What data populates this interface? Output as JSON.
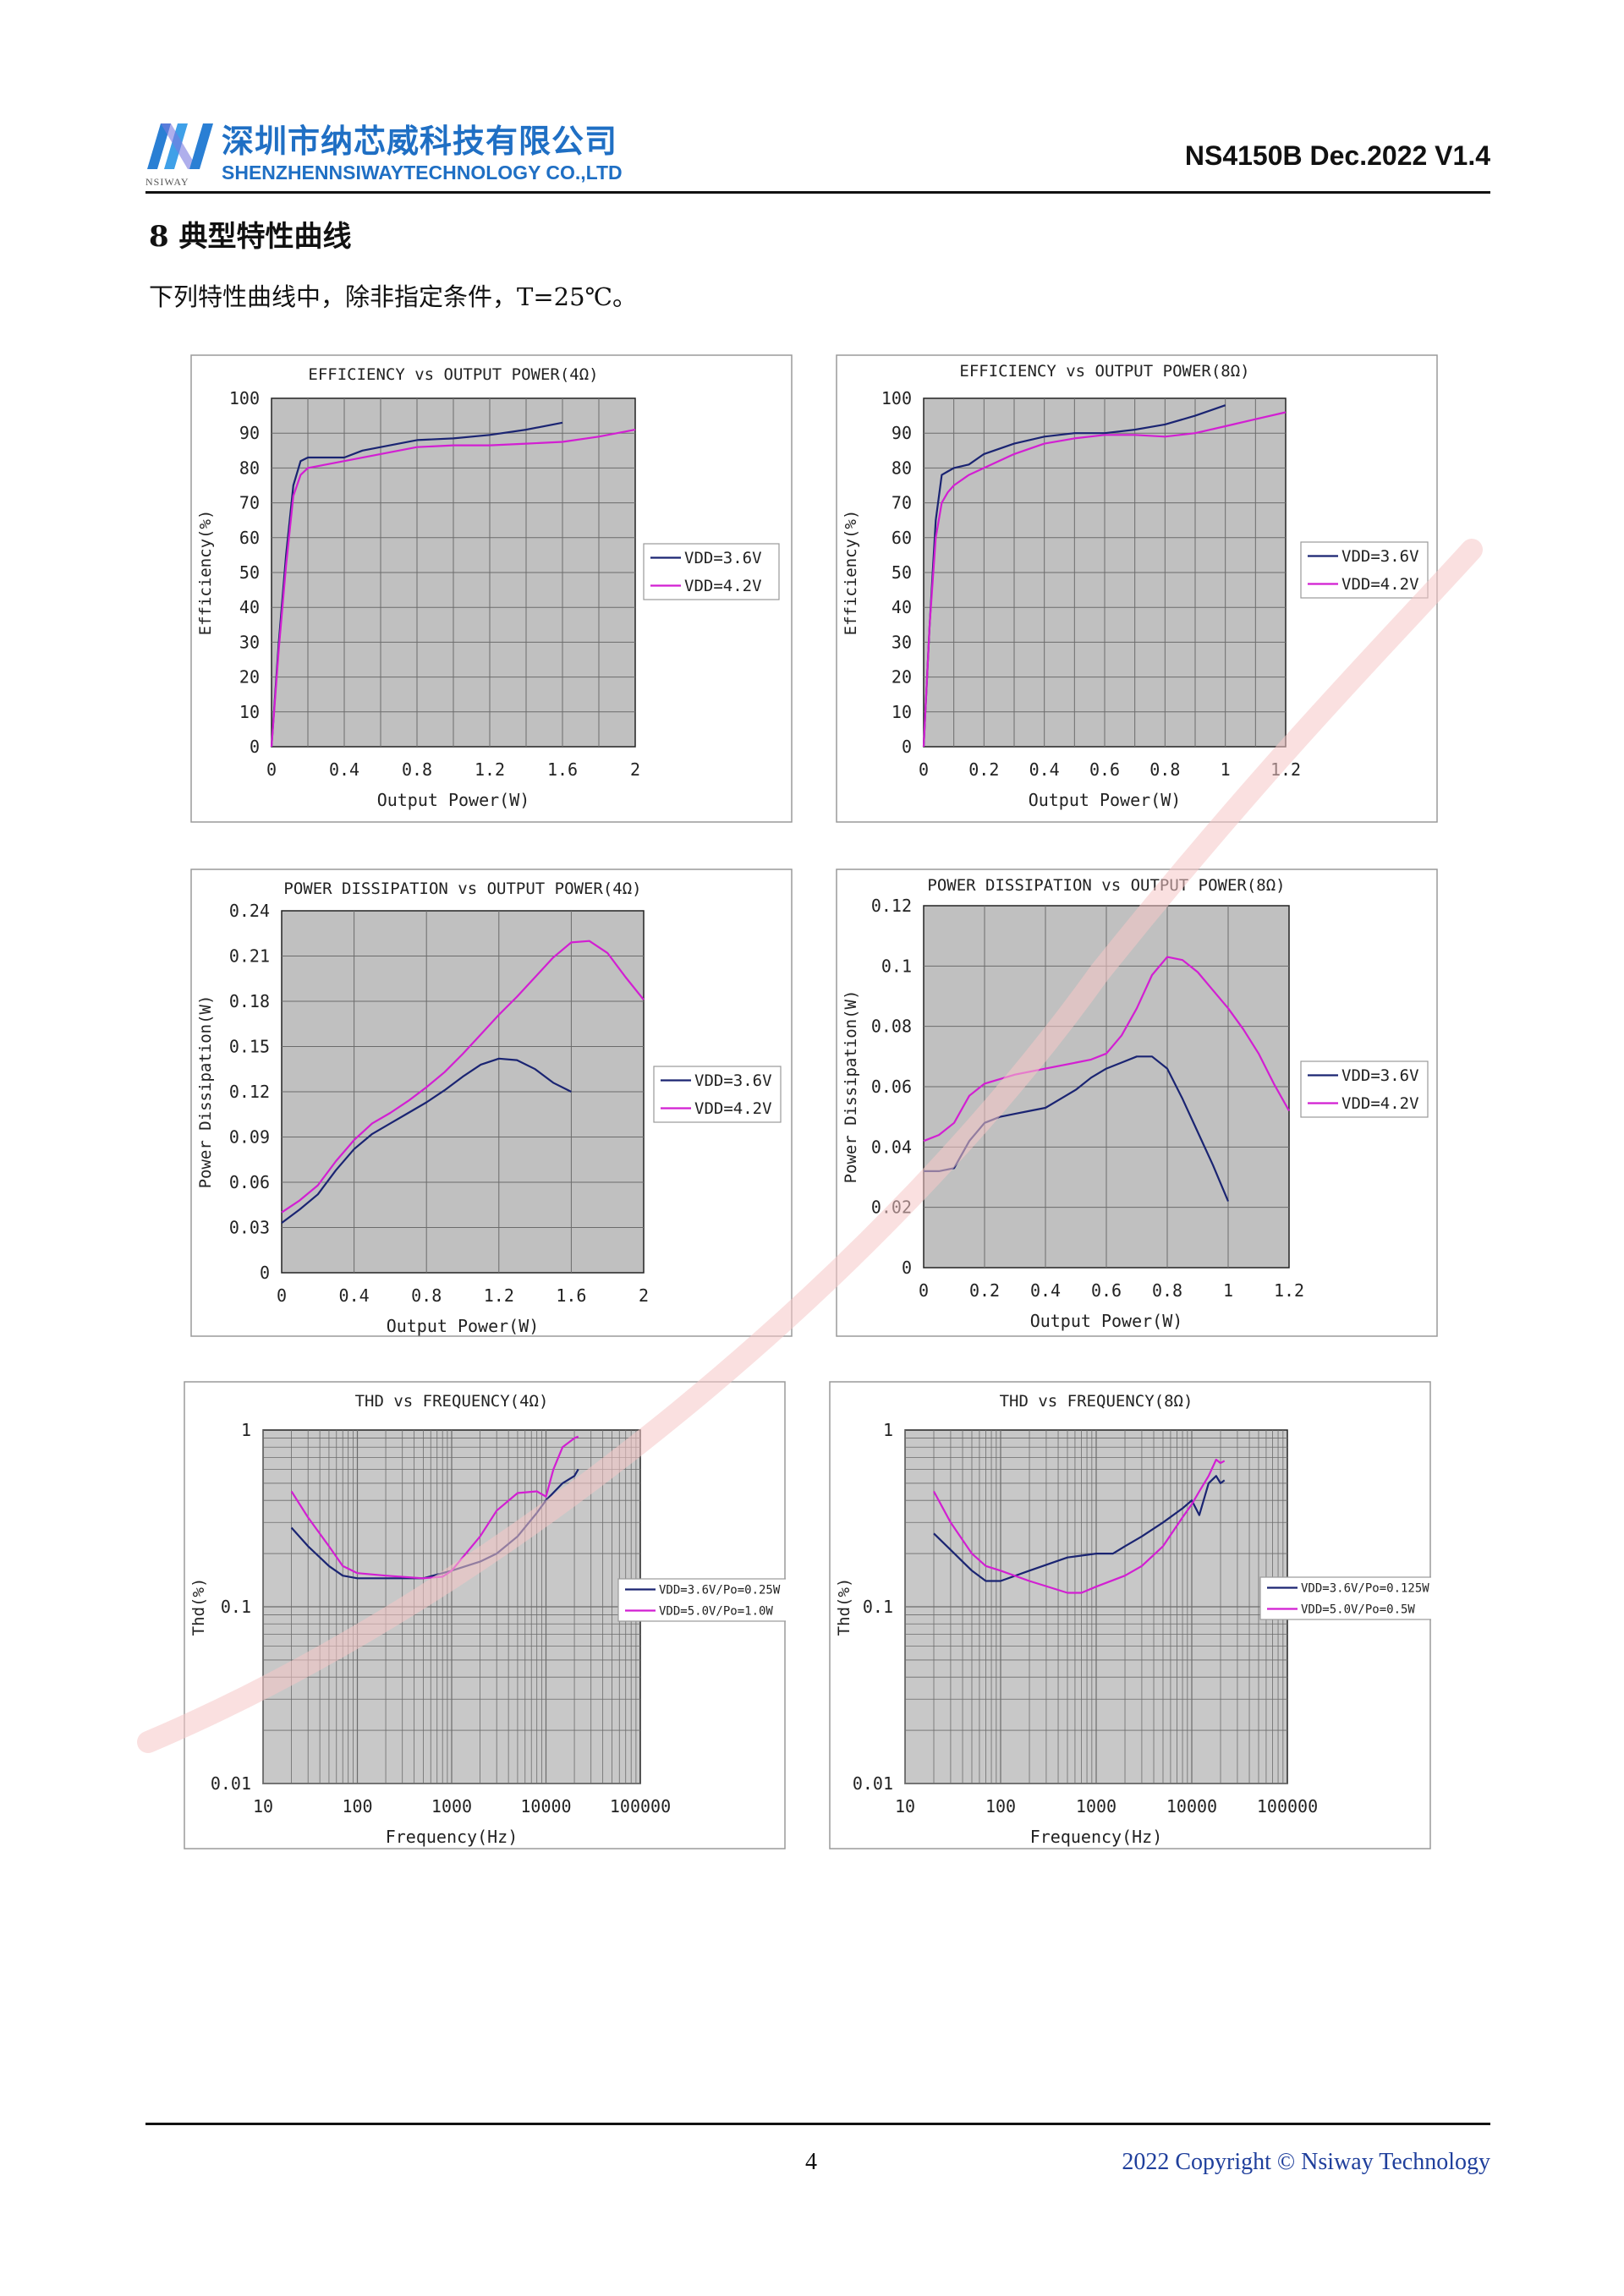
{
  "header": {
    "company_cn": "深圳市纳芯威科技有限公司",
    "company_en": "SHENZHENNSIWAYTECHNOLOGY CO.,LTD",
    "logo_small": "NSIWAY",
    "doc_id": "NS4150B Dec.2022 V1.4"
  },
  "section": {
    "title": "8 典型特性曲线",
    "intro": "下列特性曲线中，除非指定条件，T=25℃。"
  },
  "footer": {
    "page": "4",
    "copyright": "2022 Copyright © Nsiway Technology"
  },
  "colors": {
    "series1": "#1a2472",
    "series2": "#d21fd2",
    "plot_bg": "#c0c0c0",
    "brand": "#1f6fc4",
    "watermark": "#f2b8b8"
  },
  "chart_data": [
    {
      "id": "eff4",
      "type": "line",
      "title": "EFFICIENCY vs OUTPUT POWER(4Ω)",
      "xlabel": "Output Power(W)",
      "ylabel": "Efficiency(%)",
      "xlim": [
        0,
        2
      ],
      "ylim": [
        0,
        100
      ],
      "xticks": [
        0,
        0.4,
        0.8,
        1.2,
        1.6,
        2
      ],
      "xtick_labels": [
        "0",
        "0.4",
        "0.8",
        "1.2",
        "1.6",
        "2"
      ],
      "yticks": [
        0,
        10,
        20,
        30,
        40,
        50,
        60,
        70,
        80,
        90,
        100
      ],
      "ytick_labels": [
        "0",
        "10",
        "20",
        "30",
        "40",
        "50",
        "60",
        "70",
        "80",
        "90",
        "100"
      ],
      "vgrid": [
        0.2,
        0.4,
        0.6,
        0.8,
        1.0,
        1.2,
        1.4,
        1.6,
        1.8
      ],
      "hgrid": [
        10,
        20,
        30,
        40,
        50,
        60,
        70,
        80,
        90
      ],
      "legend_position": "right",
      "series": [
        {
          "name": "VDD=3.6V",
          "color": "#1a2472",
          "x": [
            0,
            0.04,
            0.08,
            0.12,
            0.16,
            0.2,
            0.25,
            0.3,
            0.4,
            0.5,
            0.6,
            0.8,
            1.0,
            1.2,
            1.4,
            1.6
          ],
          "y": [
            0,
            30,
            55,
            75,
            82,
            83,
            83,
            83,
            83,
            85,
            86,
            88,
            88.5,
            89.5,
            91,
            93
          ]
        },
        {
          "name": "VDD=4.2V",
          "color": "#d21fd2",
          "x": [
            0,
            0.04,
            0.08,
            0.12,
            0.16,
            0.2,
            0.3,
            0.4,
            0.6,
            0.8,
            1.0,
            1.2,
            1.4,
            1.6,
            1.8,
            2.0
          ],
          "y": [
            0,
            28,
            52,
            72,
            78,
            80,
            81,
            82,
            84,
            86,
            86.5,
            86.5,
            87,
            87.5,
            89,
            91
          ]
        }
      ]
    },
    {
      "id": "eff8",
      "type": "line",
      "title": "EFFICIENCY vs OUTPUT POWER(8Ω)",
      "xlabel": "Output Power(W)",
      "ylabel": "Efficiency(%)",
      "xlim": [
        0,
        1.2
      ],
      "ylim": [
        0,
        100
      ],
      "xticks": [
        0,
        0.2,
        0.4,
        0.6,
        0.8,
        1,
        1.2
      ],
      "xtick_labels": [
        "0",
        "0.2",
        "0.4",
        "0.6",
        "0.8",
        "1",
        "1.2"
      ],
      "yticks": [
        0,
        10,
        20,
        30,
        40,
        50,
        60,
        70,
        80,
        90,
        100
      ],
      "ytick_labels": [
        "0",
        "10",
        "20",
        "30",
        "40",
        "50",
        "60",
        "70",
        "80",
        "90",
        "100"
      ],
      "vgrid": [
        0.1,
        0.2,
        0.3,
        0.4,
        0.5,
        0.6,
        0.7,
        0.8,
        0.9,
        1.0,
        1.1
      ],
      "hgrid": [
        10,
        20,
        30,
        40,
        50,
        60,
        70,
        80,
        90
      ],
      "legend_position": "right",
      "series": [
        {
          "name": "VDD=3.6V",
          "color": "#1a2472",
          "x": [
            0,
            0.02,
            0.04,
            0.06,
            0.08,
            0.1,
            0.15,
            0.2,
            0.3,
            0.4,
            0.5,
            0.6,
            0.7,
            0.8,
            0.9,
            1.0
          ],
          "y": [
            0,
            35,
            65,
            78,
            79,
            80,
            81,
            84,
            87,
            89,
            90,
            90,
            91,
            92.5,
            95,
            98
          ]
        },
        {
          "name": "VDD=4.2V",
          "color": "#d21fd2",
          "x": [
            0,
            0.02,
            0.04,
            0.06,
            0.08,
            0.1,
            0.15,
            0.2,
            0.3,
            0.4,
            0.5,
            0.6,
            0.7,
            0.8,
            0.9,
            1.0,
            1.1,
            1.2
          ],
          "y": [
            0,
            35,
            60,
            70,
            73,
            75,
            78,
            80,
            84,
            87,
            88.5,
            89.5,
            89.5,
            89,
            90,
            92,
            94,
            96
          ]
        }
      ]
    },
    {
      "id": "pd4",
      "type": "line",
      "title": "POWER DISSIPATION vs OUTPUT POWER(4Ω)",
      "xlabel": "Output Power(W)",
      "ylabel": "Power Dissipation(W)",
      "xlim": [
        0,
        2
      ],
      "ylim": [
        0,
        0.24
      ],
      "xticks": [
        0,
        0.4,
        0.8,
        1.2,
        1.6,
        2
      ],
      "xtick_labels": [
        "0",
        "0.4",
        "0.8",
        "1.2",
        "1.6",
        "2"
      ],
      "yticks": [
        0,
        0.03,
        0.06,
        0.09,
        0.12,
        0.15,
        0.18,
        0.21,
        0.24
      ],
      "ytick_labels": [
        "0",
        "0.03",
        "0.06",
        "0.09",
        "0.12",
        "0.15",
        "0.18",
        "0.21",
        "0.24"
      ],
      "vgrid": [
        0.4,
        0.8,
        1.2,
        1.6
      ],
      "hgrid": [
        0.03,
        0.06,
        0.09,
        0.12,
        0.15,
        0.18,
        0.21
      ],
      "legend_position": "right",
      "series": [
        {
          "name": "VDD=3.6V",
          "color": "#1a2472",
          "x": [
            0,
            0.1,
            0.2,
            0.3,
            0.4,
            0.5,
            0.6,
            0.7,
            0.8,
            0.9,
            1.0,
            1.1,
            1.2,
            1.3,
            1.4,
            1.5,
            1.6
          ],
          "y": [
            0.033,
            0.042,
            0.052,
            0.068,
            0.082,
            0.092,
            0.099,
            0.106,
            0.113,
            0.121,
            0.13,
            0.138,
            0.142,
            0.141,
            0.135,
            0.126,
            0.12
          ]
        },
        {
          "name": "VDD=4.2V",
          "color": "#d21fd2",
          "x": [
            0,
            0.1,
            0.2,
            0.3,
            0.4,
            0.5,
            0.6,
            0.7,
            0.8,
            0.9,
            1.0,
            1.1,
            1.2,
            1.3,
            1.4,
            1.5,
            1.6,
            1.7,
            1.8,
            1.9,
            2.0
          ],
          "y": [
            0.04,
            0.048,
            0.058,
            0.074,
            0.088,
            0.099,
            0.106,
            0.114,
            0.123,
            0.133,
            0.145,
            0.158,
            0.171,
            0.183,
            0.196,
            0.209,
            0.219,
            0.22,
            0.212,
            0.196,
            0.181
          ]
        }
      ]
    },
    {
      "id": "pd8",
      "type": "line",
      "title": "POWER DISSIPATION vs OUTPUT POWER(8Ω)",
      "xlabel": "Output Power(W)",
      "ylabel": "Power Dissipation(W)",
      "xlim": [
        0,
        1.2
      ],
      "ylim": [
        0,
        0.12
      ],
      "xticks": [
        0,
        0.2,
        0.4,
        0.6,
        0.8,
        1,
        1.2
      ],
      "xtick_labels": [
        "0",
        "0.2",
        "0.4",
        "0.6",
        "0.8",
        "1",
        "1.2"
      ],
      "yticks": [
        0,
        0.02,
        0.04,
        0.06,
        0.08,
        0.1,
        0.12
      ],
      "ytick_labels": [
        "0",
        "0.02",
        "0.04",
        "0.06",
        "0.08",
        "0.1",
        "0.12"
      ],
      "vgrid": [
        0.2,
        0.4,
        0.6,
        0.8,
        1.0
      ],
      "hgrid": [
        0.02,
        0.04,
        0.06,
        0.08,
        0.1
      ],
      "legend_position": "right",
      "series": [
        {
          "name": "VDD=3.6V",
          "color": "#1a2472",
          "x": [
            0,
            0.05,
            0.1,
            0.15,
            0.2,
            0.25,
            0.3,
            0.35,
            0.4,
            0.45,
            0.5,
            0.55,
            0.6,
            0.65,
            0.7,
            0.75,
            0.8,
            0.85,
            0.9,
            0.95,
            1.0
          ],
          "y": [
            0.032,
            0.032,
            0.033,
            0.042,
            0.048,
            0.05,
            0.051,
            0.052,
            0.053,
            0.056,
            0.059,
            0.063,
            0.066,
            0.068,
            0.07,
            0.07,
            0.066,
            0.056,
            0.045,
            0.034,
            0.022
          ]
        },
        {
          "name": "VDD=4.2V",
          "color": "#d21fd2",
          "x": [
            0,
            0.05,
            0.1,
            0.15,
            0.2,
            0.3,
            0.4,
            0.5,
            0.55,
            0.6,
            0.65,
            0.7,
            0.75,
            0.8,
            0.85,
            0.9,
            0.95,
            1.0,
            1.05,
            1.1,
            1.15,
            1.2
          ],
          "y": [
            0.042,
            0.044,
            0.048,
            0.057,
            0.061,
            0.064,
            0.066,
            0.068,
            0.069,
            0.071,
            0.077,
            0.086,
            0.097,
            0.103,
            0.102,
            0.098,
            0.092,
            0.086,
            0.079,
            0.071,
            0.061,
            0.052
          ]
        }
      ]
    },
    {
      "id": "thd4",
      "type": "line",
      "xscale": "log",
      "yscale": "log",
      "title": "THD vs FREQUENCY(4Ω)",
      "xlabel": "Frequency(Hz)",
      "ylabel": "Thd(%)",
      "xlim": [
        10,
        100000
      ],
      "ylim": [
        0.01,
        1
      ],
      "xticks": [
        10,
        100,
        1000,
        10000,
        100000
      ],
      "xtick_labels": [
        "10",
        "100",
        "1000",
        "10000",
        "100000"
      ],
      "yticks": [
        0.01,
        0.1,
        1
      ],
      "ytick_labels": [
        "0.01",
        "0.1",
        "1"
      ],
      "legend_position": "right",
      "series": [
        {
          "name": "VDD=3.6V/Po=0.25W",
          "color": "#1a2472",
          "x": [
            20,
            30,
            50,
            70,
            100,
            200,
            500,
            1000,
            2000,
            3000,
            5000,
            8000,
            10000,
            15000,
            20000,
            22000
          ],
          "y": [
            0.28,
            0.22,
            0.17,
            0.15,
            0.145,
            0.145,
            0.145,
            0.16,
            0.18,
            0.2,
            0.25,
            0.34,
            0.4,
            0.5,
            0.55,
            0.6
          ]
        },
        {
          "name": "VDD=5.0V/Po=1.0W",
          "color": "#d21fd2",
          "x": [
            20,
            30,
            50,
            70,
            100,
            200,
            500,
            800,
            1000,
            2000,
            3000,
            5000,
            8000,
            10000,
            12000,
            15000,
            20000,
            22000
          ],
          "y": [
            0.45,
            0.32,
            0.22,
            0.17,
            0.155,
            0.15,
            0.145,
            0.148,
            0.16,
            0.25,
            0.35,
            0.44,
            0.45,
            0.42,
            0.6,
            0.8,
            0.9,
            0.92
          ]
        }
      ]
    },
    {
      "id": "thd8",
      "type": "line",
      "xscale": "log",
      "yscale": "log",
      "title": "THD vs FREQUENCY(8Ω)",
      "xlabel": "Frequency(Hz)",
      "ylabel": "Thd(%)",
      "xlim": [
        10,
        100000
      ],
      "ylim": [
        0.01,
        1
      ],
      "xticks": [
        10,
        100,
        1000,
        10000,
        100000
      ],
      "xtick_labels": [
        "10",
        "100",
        "1000",
        "10000",
        "100000"
      ],
      "yticks": [
        0.01,
        0.1,
        1
      ],
      "ytick_labels": [
        "0.01",
        "0.1",
        "1"
      ],
      "legend_position": "right",
      "series": [
        {
          "name": "VDD=3.6V/Po=0.125W",
          "color": "#1a2472",
          "x": [
            20,
            30,
            50,
            70,
            100,
            200,
            500,
            1000,
            1500,
            2000,
            3000,
            5000,
            8000,
            10000,
            12000,
            15000,
            18000,
            20000,
            22000
          ],
          "y": [
            0.26,
            0.21,
            0.16,
            0.14,
            0.14,
            0.16,
            0.19,
            0.2,
            0.2,
            0.22,
            0.25,
            0.3,
            0.36,
            0.4,
            0.33,
            0.5,
            0.55,
            0.5,
            0.52
          ]
        },
        {
          "name": "VDD=5.0V/Po=0.5W",
          "color": "#d21fd2",
          "x": [
            20,
            30,
            50,
            70,
            100,
            200,
            500,
            700,
            1000,
            2000,
            3000,
            5000,
            8000,
            10000,
            12000,
            15000,
            18000,
            20000,
            22000
          ],
          "y": [
            0.45,
            0.3,
            0.2,
            0.17,
            0.16,
            0.14,
            0.12,
            0.12,
            0.13,
            0.15,
            0.17,
            0.22,
            0.32,
            0.38,
            0.45,
            0.55,
            0.68,
            0.65,
            0.67
          ]
        }
      ]
    }
  ]
}
